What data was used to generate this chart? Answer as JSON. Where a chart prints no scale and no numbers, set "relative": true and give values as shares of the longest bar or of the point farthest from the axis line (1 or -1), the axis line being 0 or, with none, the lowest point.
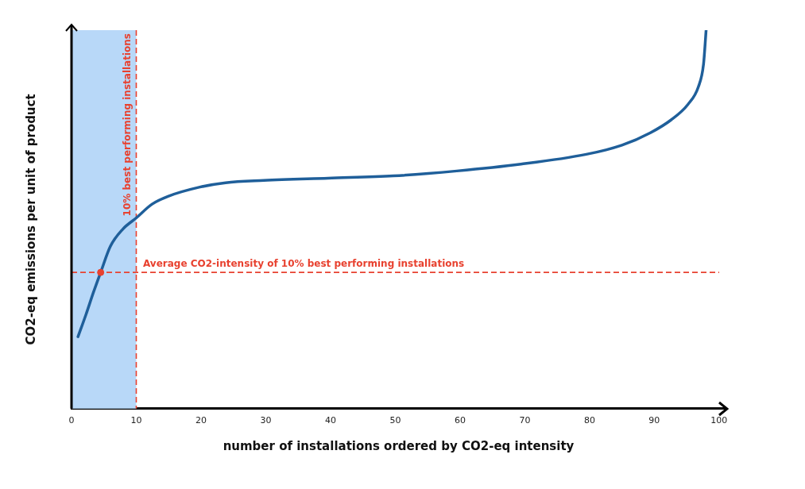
{
  "chart_data": {
    "type": "line",
    "xlabel": "number of installations ordered by CO2-eq intensity",
    "ylabel": "CO2-eq emissions per unit of product",
    "relative": true,
    "xlim": [
      0,
      101
    ],
    "xticks": [
      0,
      10,
      20,
      30,
      40,
      50,
      60,
      70,
      80,
      90,
      100
    ],
    "tick_labels": "x",
    "grid": false,
    "legend": false,
    "series": [
      {
        "color": "#1f5f9a",
        "marker": "none",
        "x": [
          1.0,
          2.2,
          3.4,
          4.5,
          6.0,
          7.9,
          10,
          12.4,
          14.9,
          19.7,
          23.8,
          29.7,
          39.6,
          49.7,
          59.5,
          69.4,
          79.5,
          85,
          89.4,
          92.6,
          95.2,
          96.8,
          97.6,
          98
        ],
        "values": [
          0.19,
          0.247,
          0.308,
          0.36,
          0.429,
          0.474,
          0.504,
          0.54,
          0.561,
          0.585,
          0.597,
          0.603,
          0.609,
          0.615,
          0.628,
          0.646,
          0.672,
          0.696,
          0.729,
          0.763,
          0.804,
          0.85,
          0.91,
          1
        ]
      },
      {
        "type": "scatter",
        "marker": "circle",
        "color": "#e8412f",
        "x": [
          4.5
        ],
        "values": [
          0.36
        ]
      }
    ],
    "ref_lines": [
      {
        "axis": "x",
        "value": 10,
        "label": "10% best performing installations",
        "color": "#e8412f",
        "line_style": "dashed"
      },
      {
        "axis": "y",
        "value": 0.36,
        "label": "Average CO2-intensity of 10% best performing installations",
        "color": "#e8412f",
        "line_style": "dashed"
      }
    ],
    "bands": [
      {
        "axis": "x",
        "from": 0,
        "to": 10,
        "color": "#b8d8f8"
      }
    ]
  }
}
